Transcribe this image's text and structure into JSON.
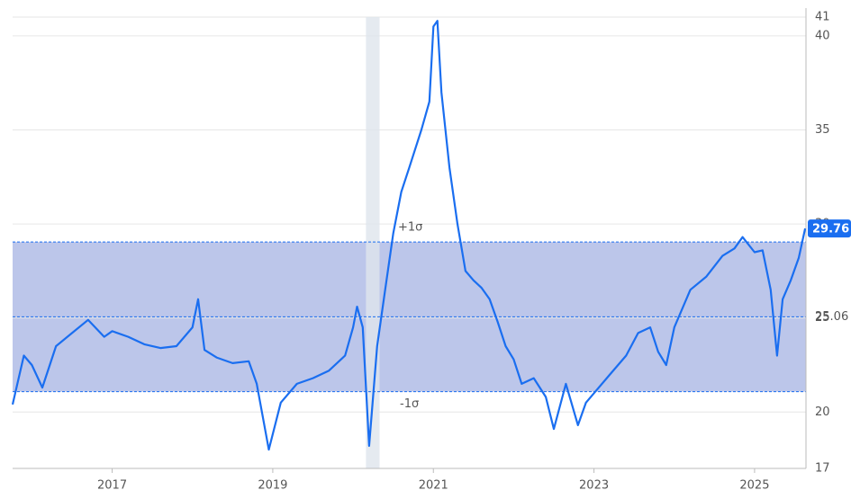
{
  "chart_data": {
    "type": "line",
    "x": [
      2015.76,
      2015.9,
      2016.0,
      2016.13,
      2016.3,
      2016.5,
      2016.7,
      2016.9,
      2017.0,
      2017.2,
      2017.4,
      2017.6,
      2017.8,
      2018.0,
      2018.07,
      2018.15,
      2018.3,
      2018.5,
      2018.7,
      2018.8,
      2018.95,
      2019.1,
      2019.3,
      2019.5,
      2019.7,
      2019.9,
      2020.0,
      2020.05,
      2020.12,
      2020.2,
      2020.3,
      2020.4,
      2020.5,
      2020.6,
      2020.7,
      2020.85,
      2020.95,
      2021.0,
      2021.05,
      2021.1,
      2021.2,
      2021.3,
      2021.4,
      2021.5,
      2021.6,
      2021.7,
      2021.8,
      2021.9,
      2022.0,
      2022.1,
      2022.25,
      2022.4,
      2022.5,
      2022.65,
      2022.8,
      2022.9,
      2023.0,
      2023.2,
      2023.4,
      2023.55,
      2023.7,
      2023.8,
      2023.9,
      2024.0,
      2024.2,
      2024.4,
      2024.6,
      2024.75,
      2024.85,
      2025.0,
      2025.1,
      2025.2,
      2025.28,
      2025.35,
      2025.45,
      2025.55,
      2025.63
    ],
    "series": [
      {
        "color": "#1a6ef0",
        "values": [
          20.4,
          23,
          22.5,
          21.3,
          23.5,
          24.2,
          24.9,
          24,
          24.3,
          24,
          23.6,
          23.4,
          23.5,
          24.5,
          26,
          23.3,
          22.9,
          22.6,
          22.7,
          21.5,
          18,
          20.5,
          21.5,
          21.8,
          22.2,
          23,
          24.5,
          25.6,
          24.5,
          18.2,
          23.5,
          26.5,
          29.5,
          31.7,
          33,
          35,
          36.5,
          40.5,
          40.8,
          37,
          33,
          30,
          27.5,
          27,
          26.6,
          26,
          24.8,
          23.5,
          22.8,
          21.5,
          21.8,
          20.8,
          19.1,
          21.5,
          19.3,
          20.5,
          21,
          22,
          23,
          24.2,
          24.5,
          23.2,
          22.5,
          24.5,
          26.5,
          27.2,
          28.3,
          28.7,
          29.3,
          28.5,
          28.6,
          26.5,
          23,
          26,
          27,
          28.2,
          29.76
        ]
      }
    ],
    "xlim": [
      2015.76,
      2025.64
    ],
    "xticks": [
      2017,
      2019,
      2021,
      2023,
      2025
    ],
    "ylim": [
      17,
      41
    ],
    "yticks": [
      17,
      20,
      25,
      30,
      35,
      40,
      41
    ],
    "grid": true,
    "mean": 25.06,
    "upper_sigma": {
      "value": 29.04,
      "label": "+1σ"
    },
    "lower_sigma": {
      "value": 21.08,
      "label": "-1σ"
    },
    "shaded_region": [
      2020.16,
      2020.33
    ],
    "band_color": "#bcc6ea"
  }
}
